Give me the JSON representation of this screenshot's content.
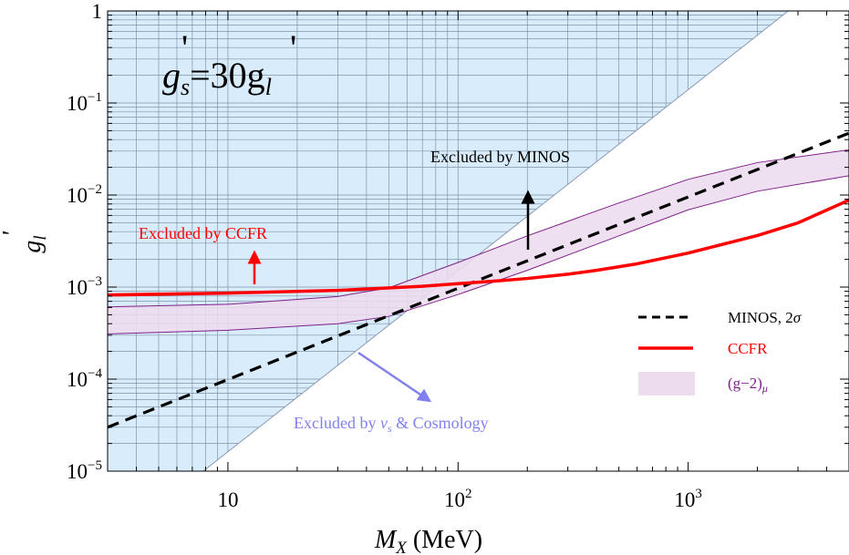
{
  "chart_data": {
    "type": "line",
    "title": "",
    "xlabel": "M_X (MeV)",
    "ylabel": "g'_l",
    "xscale": "log",
    "yscale": "log",
    "xlim": [
      3,
      5000
    ],
    "ylim": [
      1e-05,
      1
    ],
    "grid": "minor grid inside excluded region only",
    "x_ticks": [
      {
        "value": 10,
        "base": "",
        "main": "10",
        "exp": ""
      },
      {
        "value": 100,
        "base": "10",
        "main": "10",
        "exp": "2"
      },
      {
        "value": 1000,
        "base": "10",
        "main": "10",
        "exp": "3"
      }
    ],
    "y_ticks": [
      {
        "value": 1e-05,
        "main": "10",
        "exp": "−5"
      },
      {
        "value": 0.0001,
        "main": "10",
        "exp": "−4"
      },
      {
        "value": 0.001,
        "main": "10",
        "exp": "−3"
      },
      {
        "value": 0.01,
        "main": "10",
        "exp": "−2"
      },
      {
        "value": 0.1,
        "main": "10",
        "exp": "−1"
      },
      {
        "value": 1,
        "main": "1",
        "exp": ""
      }
    ],
    "inset_text": {
      "lhs": "g",
      "lhs_sub": "s",
      "rhs": "=30g",
      "rhs_sub": "l",
      "prime": "'"
    },
    "series": [
      {
        "name": "MINOS, 2σ",
        "style": "dashed",
        "color": "#000000",
        "x": [
          3,
          5000
        ],
        "y": [
          3e-05,
          0.047
        ]
      },
      {
        "name": "CCFR",
        "style": "solid",
        "color": "#ff0000",
        "x": [
          3,
          10,
          30,
          70,
          100,
          150,
          200,
          300,
          400,
          600,
          1000,
          2000,
          3000,
          5000
        ],
        "y": [
          0.00082,
          0.00086,
          0.00092,
          0.00102,
          0.00109,
          0.00117,
          0.00124,
          0.00138,
          0.00152,
          0.00179,
          0.00234,
          0.00363,
          0.00498,
          0.0088
        ]
      },
      {
        "name": "(g−2)μ",
        "type": "area",
        "fill": "#ecdcee",
        "edge": "#80208a",
        "x": [
          3,
          10,
          30,
          50,
          100,
          200,
          500,
          1000,
          2000,
          5000
        ],
        "y_upper": [
          0.00061,
          0.00065,
          0.00079,
          0.00098,
          0.00185,
          0.0036,
          0.0082,
          0.0148,
          0.0225,
          0.031
        ],
        "y_lower": [
          0.00031,
          0.00034,
          0.0004,
          0.00048,
          0.00083,
          0.00152,
          0.0036,
          0.0069,
          0.011,
          0.0162
        ]
      },
      {
        "name": "Excluded by ν_s & Cosmology",
        "type": "region",
        "fill": "#d9ecfc",
        "edge": "#8a99b3",
        "boundary_x": [
          7.81,
          2725
        ],
        "boundary_y": [
          1e-05,
          1
        ]
      }
    ],
    "annotations": [
      {
        "text": "Excluded by MINOS",
        "color": "#000000",
        "arrow": "up"
      },
      {
        "text": "Excluded by CCFR",
        "color": "#ff0000",
        "arrow": "up"
      },
      {
        "text_main": "Excluded by ",
        "text_sym": "ν",
        "text_sub": "s",
        "text_tail": " & Cosmology",
        "color": "#8080f0",
        "arrow": "down-right"
      }
    ],
    "legend": {
      "placement": "bottom-right",
      "items": [
        "MINOS, 2σ",
        "CCFR",
        "(g−2)μ"
      ]
    }
  },
  "labels": {
    "x_axis_main": "M",
    "x_axis_sub": "X",
    "x_axis_unit": " (MeV)",
    "y_axis_main": "g",
    "y_axis_sub": "l",
    "y_axis_prime": "'",
    "legend_minos": "MINOS, 2",
    "legend_minos_sigma": "σ",
    "legend_ccfr": "CCFR",
    "legend_g2_main": "(g−2)",
    "legend_g2_sub": "μ",
    "ann_minos": "Excluded by MINOS",
    "ann_ccfr": "Excluded by CCFR",
    "ann_cosmo_main": "Excluded by ",
    "ann_cosmo_sym": "ν",
    "ann_cosmo_sub": "s",
    "ann_cosmo_tail": " & Cosmology"
  }
}
